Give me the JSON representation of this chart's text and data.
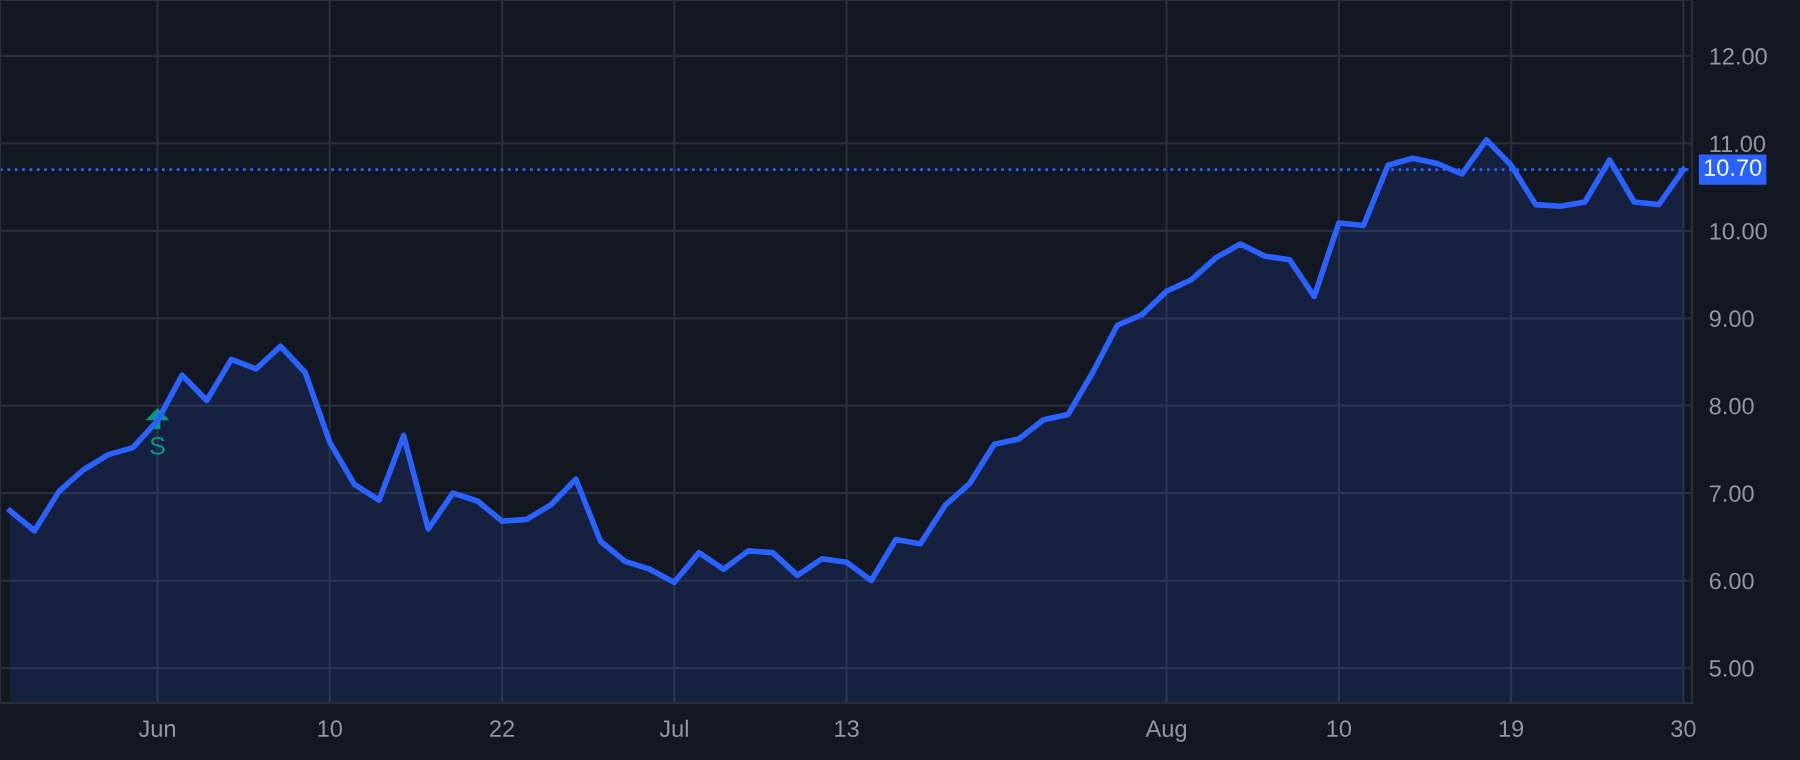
{
  "chart_data": {
    "type": "area",
    "categories": [
      null,
      null,
      null,
      null,
      null,
      null,
      "Jun",
      null,
      null,
      null,
      null,
      null,
      null,
      "10",
      null,
      null,
      null,
      null,
      null,
      null,
      "22",
      null,
      null,
      null,
      null,
      null,
      null,
      "Jul",
      null,
      null,
      null,
      null,
      null,
      null,
      "13",
      null,
      null,
      null,
      null,
      null,
      null,
      null,
      null,
      null,
      null,
      null,
      null,
      "Aug",
      null,
      null,
      null,
      null,
      null,
      null,
      "10",
      null,
      null,
      null,
      null,
      null,
      null,
      "19",
      null,
      null,
      null,
      null,
      null,
      null,
      "30"
    ],
    "series": [
      {
        "color": "#2962ff",
        "values": [
          6.8,
          6.57,
          7.02,
          7.27,
          7.44,
          7.52,
          7.83,
          8.35,
          8.06,
          8.53,
          8.42,
          8.68,
          8.38,
          7.58,
          7.1,
          6.92,
          7.66,
          6.59,
          7.0,
          6.91,
          6.68,
          6.7,
          6.87,
          7.16,
          6.45,
          6.22,
          6.13,
          5.98,
          6.32,
          6.13,
          6.34,
          6.32,
          6.06,
          6.25,
          6.21,
          6.0,
          6.47,
          6.42,
          6.86,
          7.11,
          7.56,
          7.62,
          7.84,
          7.9,
          8.38,
          8.92,
          9.04,
          9.31,
          9.44,
          9.69,
          9.85,
          9.71,
          9.67,
          9.25,
          10.09,
          10.06,
          10.75,
          10.83,
          10.77,
          10.65,
          11.04,
          10.75,
          10.3,
          10.28,
          10.33,
          10.81,
          10.33,
          10.3,
          10.7
        ]
      }
    ],
    "ylim": [
      4.6,
      12.64
    ],
    "yticks": [
      {
        "value": 5,
        "label": "5.00"
      },
      {
        "value": 6,
        "label": "6.00"
      },
      {
        "value": 7,
        "label": "7.00"
      },
      {
        "value": 8,
        "label": "8.00"
      },
      {
        "value": 9,
        "label": "9.00"
      },
      {
        "value": 10,
        "label": "10.00"
      },
      {
        "value": 11,
        "label": "11.00"
      },
      {
        "value": 12,
        "label": "12.00"
      }
    ],
    "ref_lines": [
      {
        "axis": "y",
        "value": 10.7,
        "label": "10.70",
        "color": "#2962ff",
        "line_style": "dotted"
      }
    ],
    "annotations": [
      {
        "text": "S",
        "x": "Jun",
        "y": 7.8
      }
    ],
    "grid": true,
    "legend": false
  }
}
